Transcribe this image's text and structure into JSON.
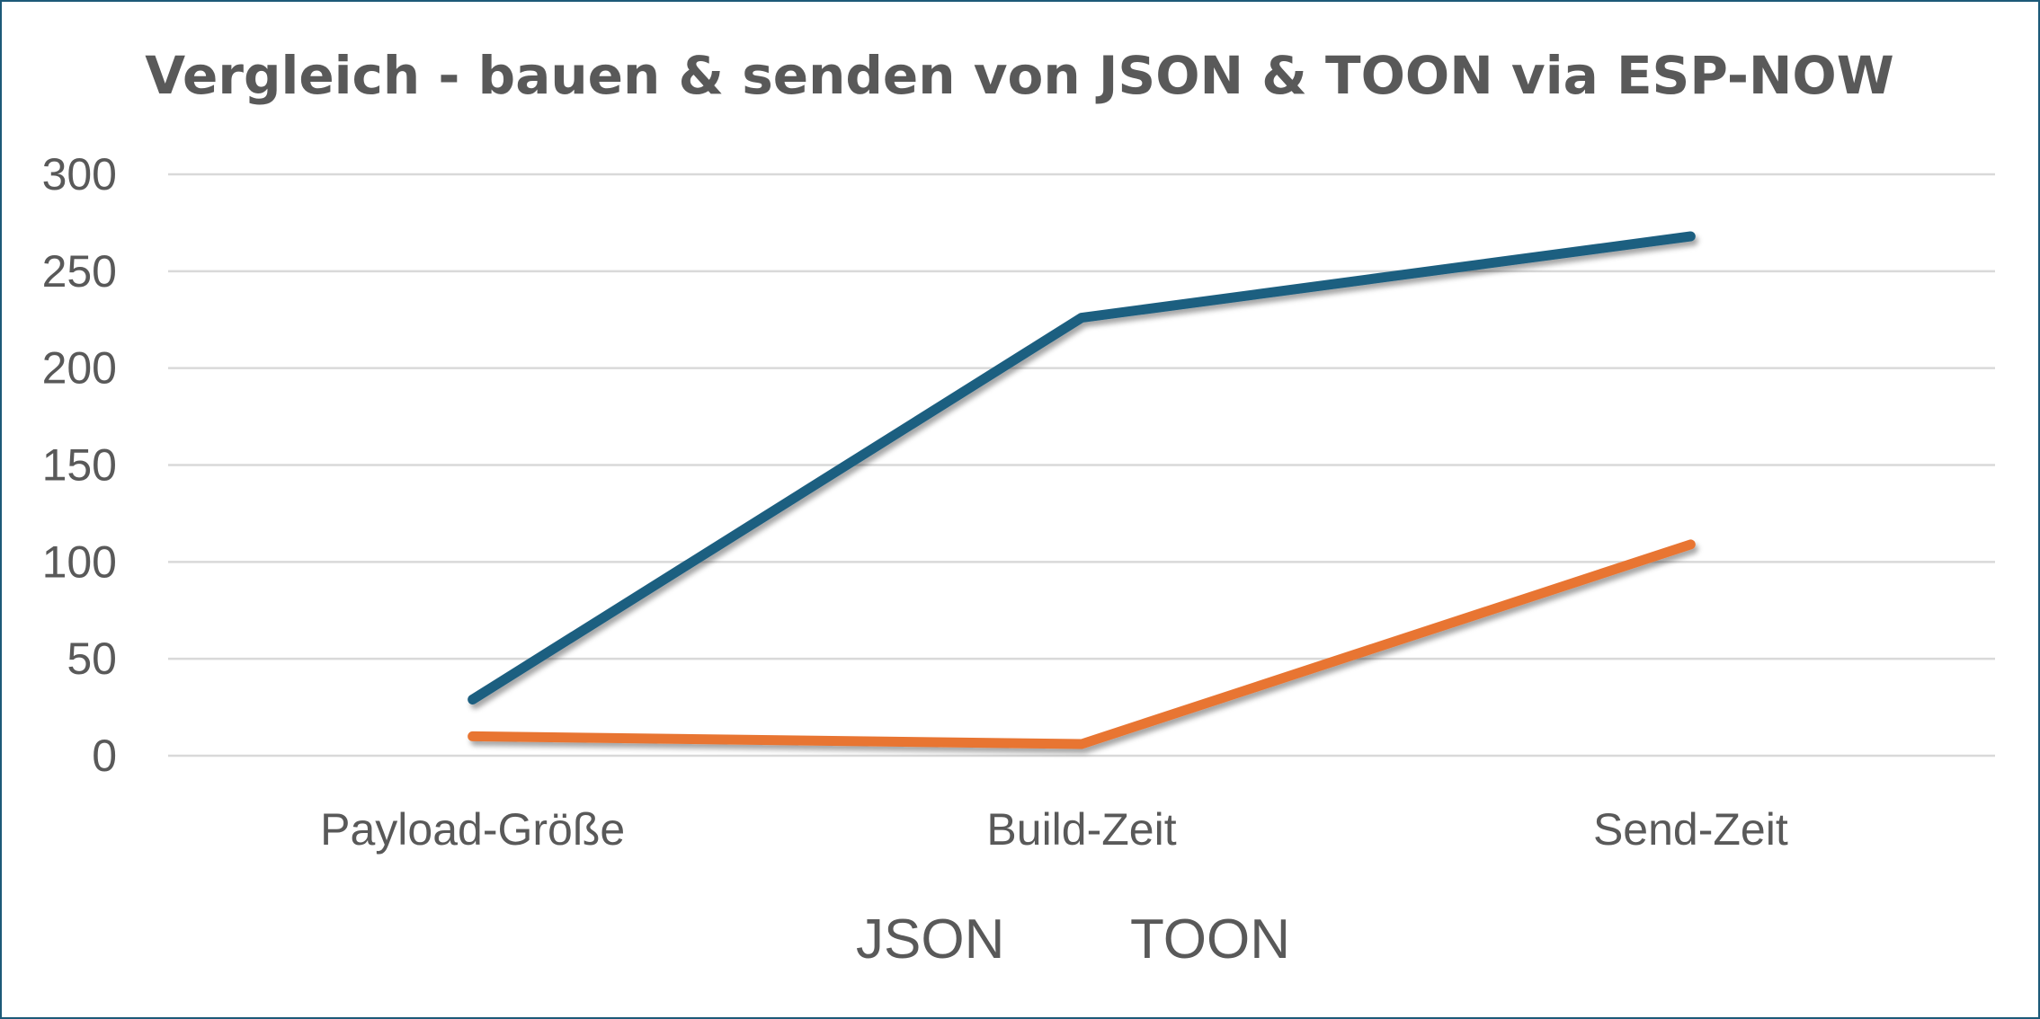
{
  "chart_data": {
    "type": "line",
    "title": "Vergleich - bauen & senden von JSON & TOON via ESP-NOW",
    "categories": [
      "Payload-Größe",
      "Build-Zeit",
      "Send-Zeit"
    ],
    "series": [
      {
        "name": "JSON",
        "values": [
          29,
          226,
          268
        ],
        "color": "#1b5e80"
      },
      {
        "name": "TOON",
        "values": [
          10,
          6,
          109
        ],
        "color": "#e87432"
      }
    ],
    "ylim": [
      0,
      300
    ],
    "yticks": [
      0,
      50,
      100,
      150,
      200,
      250,
      300
    ],
    "grid": true,
    "legend": "bottom",
    "xlabel": "",
    "ylabel": ""
  }
}
